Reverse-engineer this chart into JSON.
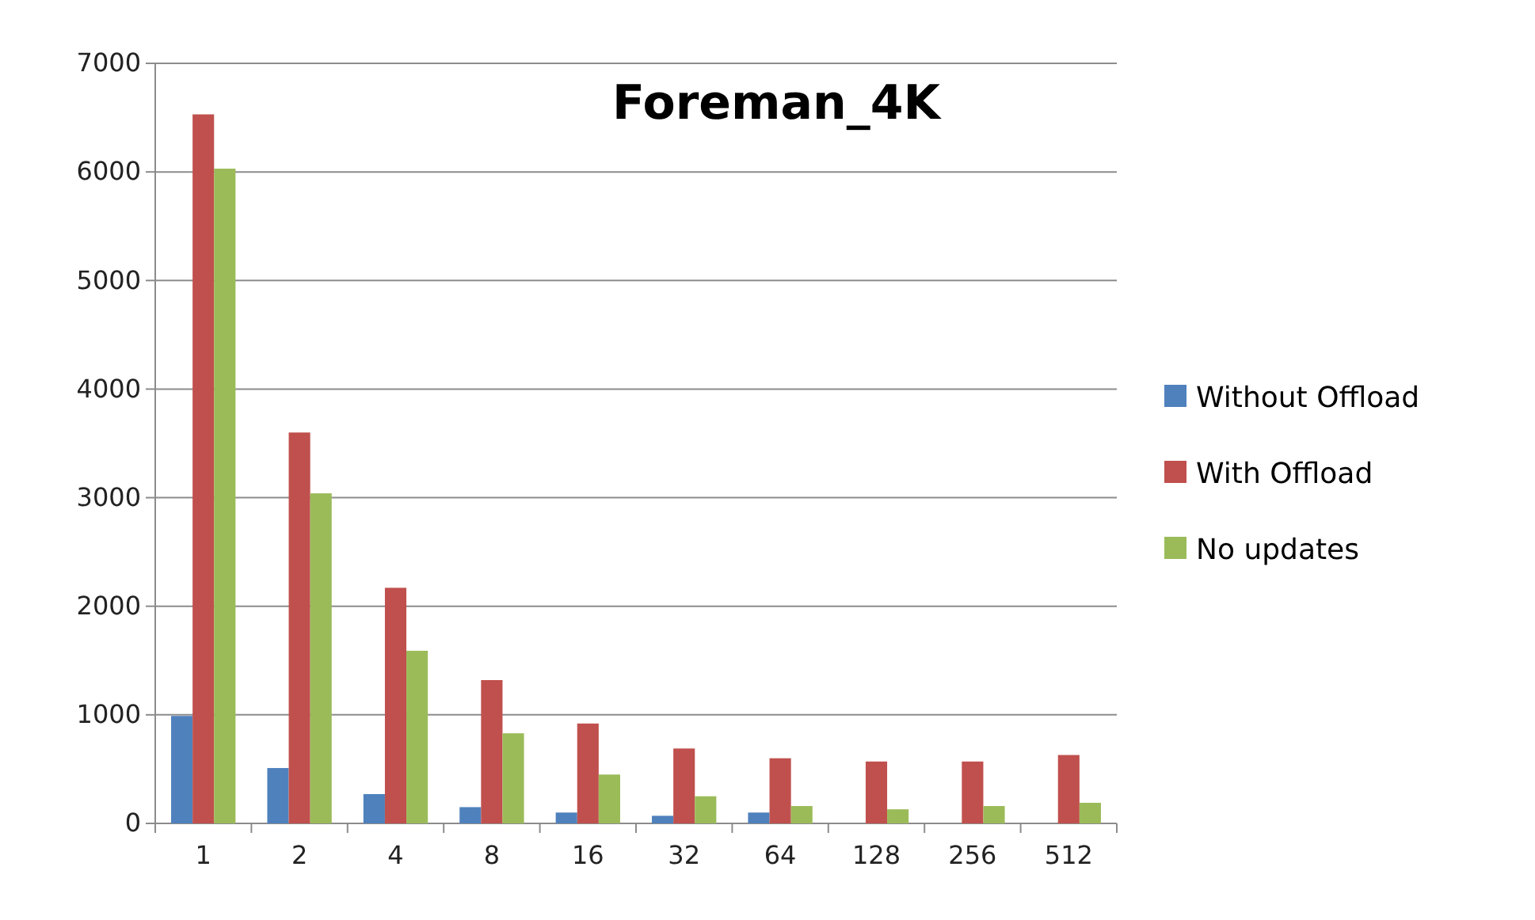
{
  "chart_data": {
    "type": "bar",
    "title": "Foreman_4K",
    "categories": [
      "1",
      "2",
      "4",
      "8",
      "16",
      "32",
      "64",
      "128",
      "256",
      "512"
    ],
    "series": [
      {
        "name": "Without Offload",
        "color": "#4f81bd",
        "values": [
          990,
          510,
          270,
          150,
          100,
          70,
          100,
          null,
          null,
          null
        ]
      },
      {
        "name": "With Offload",
        "color": "#c0504d",
        "values": [
          6530,
          3600,
          2170,
          1320,
          920,
          690,
          600,
          570,
          570,
          630
        ]
      },
      {
        "name": "No updates",
        "color": "#9bbb59",
        "values": [
          6030,
          3040,
          1590,
          830,
          450,
          250,
          160,
          130,
          160,
          190
        ]
      }
    ],
    "ylim": [
      0,
      7000
    ],
    "yticks": [
      0,
      1000,
      2000,
      3000,
      4000,
      5000,
      6000,
      7000
    ],
    "grid": "y",
    "legend": "right"
  }
}
